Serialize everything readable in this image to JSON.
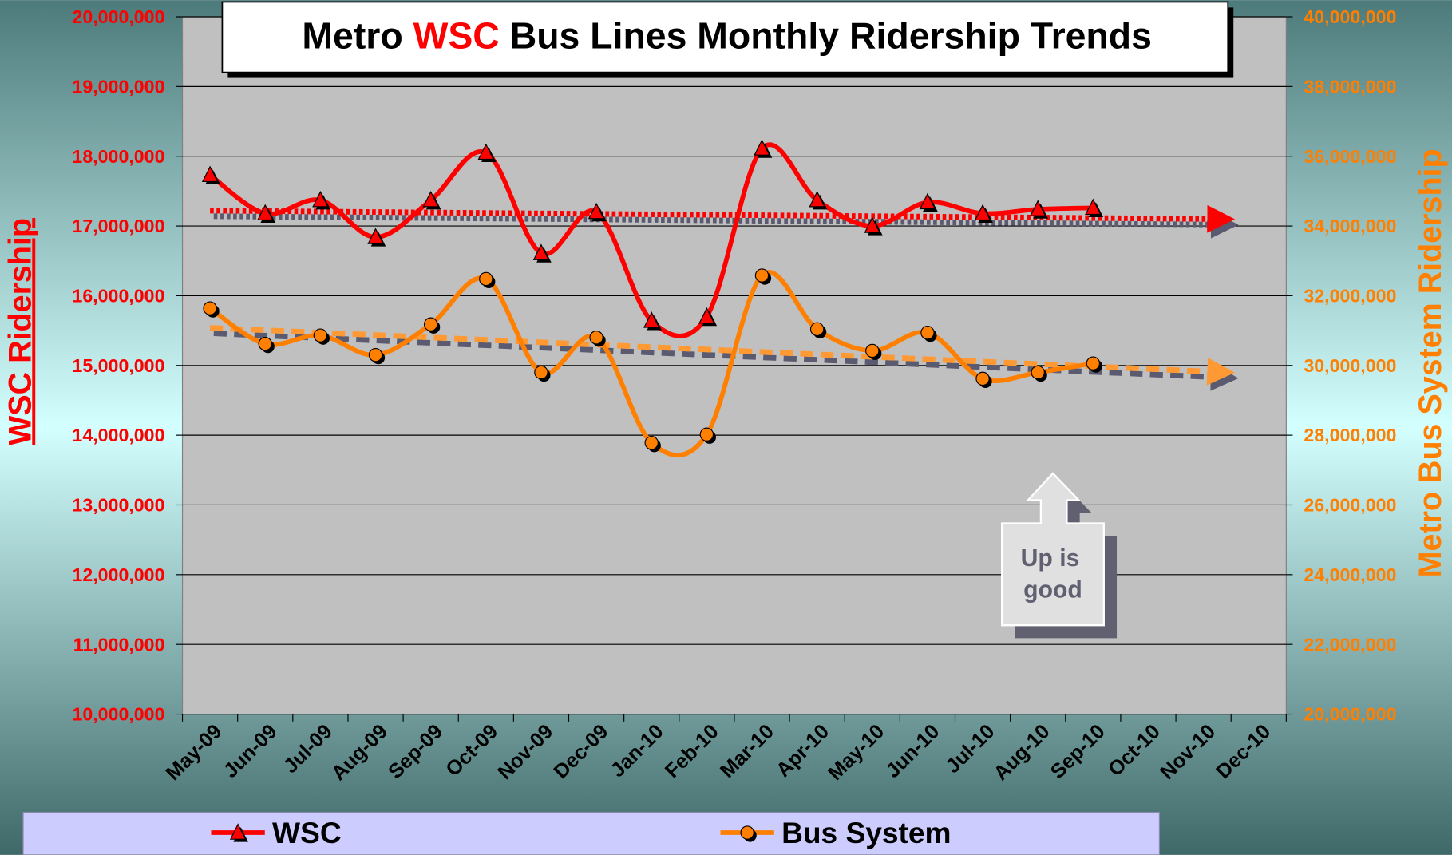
{
  "chart_data": {
    "type": "line",
    "title": [
      "Metro",
      "WSC",
      "Bus Lines Monthly Ridership Trends"
    ],
    "y_label": "WSC Ridership",
    "y2_label": "Metro Bus System Ridership",
    "annotation": [
      "Up is",
      "good"
    ],
    "categories": [
      "May-09",
      "Jun-09",
      "Jul-09",
      "Aug-09",
      "Sep-09",
      "Oct-09",
      "Nov-09",
      "Dec-09",
      "Jan-10",
      "Feb-10",
      "Mar-10",
      "Apr-10",
      "May-10",
      "Jun-10",
      "Jul-10",
      "Aug-10",
      "Sep-10",
      "Oct-10",
      "Nov-10",
      "Dec-10"
    ],
    "series": [
      {
        "name": "WSC",
        "color": "#ff0000",
        "marker": "triangle",
        "axis": "y",
        "values": [
          17730000,
          17180000,
          17370000,
          16840000,
          17370000,
          18050000,
          16610000,
          17200000,
          15640000,
          15700000,
          18110000,
          17370000,
          17000000,
          17340000,
          17180000,
          17240000,
          17260000,
          null,
          null,
          null
        ]
      },
      {
        "name": "Bus System",
        "color": "#ff7f00",
        "marker": "circle",
        "axis": "y2",
        "values": [
          31640000,
          30620000,
          30860000,
          30300000,
          31180000,
          32480000,
          29800000,
          30800000,
          27780000,
          28020000,
          32580000,
          31040000,
          30420000,
          30940000,
          29620000,
          29800000,
          30060000,
          null,
          null,
          null
        ]
      }
    ],
    "trendlines": [
      {
        "axis": "y",
        "color": "#ff0000",
        "style": "dotted",
        "values": [
          17220000,
          17100000
        ]
      },
      {
        "axis": "y2",
        "color": "#ff9933",
        "style": "dashed",
        "values": [
          31080000,
          29820000
        ]
      }
    ],
    "ylim": [
      10000000,
      20000000
    ],
    "yticks": [
      {
        "value": 10000000,
        "label": "10,000,000"
      },
      {
        "value": 11000000,
        "label": "11,000,000"
      },
      {
        "value": 12000000,
        "label": "12,000,000"
      },
      {
        "value": 13000000,
        "label": "13,000,000"
      },
      {
        "value": 14000000,
        "label": "14,000,000"
      },
      {
        "value": 15000000,
        "label": "15,000,000"
      },
      {
        "value": 16000000,
        "label": "16,000,000"
      },
      {
        "value": 17000000,
        "label": "17,000,000"
      },
      {
        "value": 18000000,
        "label": "18,000,000"
      },
      {
        "value": 19000000,
        "label": "19,000,000"
      },
      {
        "value": 20000000,
        "label": "20,000,000"
      }
    ],
    "y2lim": [
      20000000,
      40000000
    ],
    "y2ticks": [
      {
        "value": 20000000,
        "label": "20,000,000"
      },
      {
        "value": 22000000,
        "label": "22,000,000"
      },
      {
        "value": 24000000,
        "label": "24,000,000"
      },
      {
        "value": 26000000,
        "label": "26,000,000"
      },
      {
        "value": 28000000,
        "label": "28,000,000"
      },
      {
        "value": 30000000,
        "label": "30,000,000"
      },
      {
        "value": 32000000,
        "label": "32,000,000"
      },
      {
        "value": 34000000,
        "label": "34,000,000"
      },
      {
        "value": 36000000,
        "label": "36,000,000"
      },
      {
        "value": 38000000,
        "label": "38,000,000"
      },
      {
        "value": 40000000,
        "label": "40,000,000"
      }
    ],
    "grid": true,
    "legend": "bottom"
  }
}
